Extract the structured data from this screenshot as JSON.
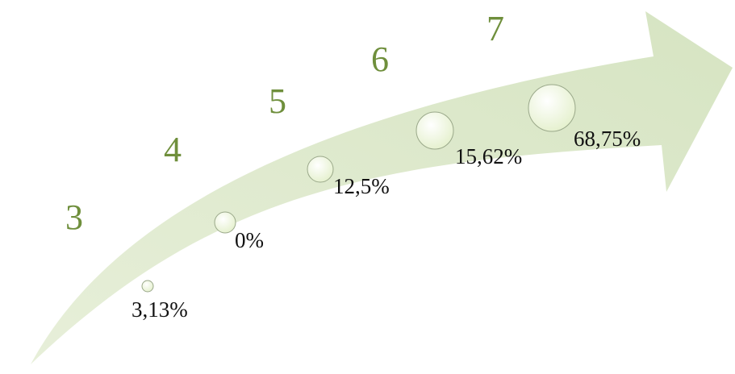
{
  "diagram": {
    "colors": {
      "arrow_fill": "#dfe9cf",
      "bubble_fill": "#eef7dc",
      "bubble_stroke": "#9aa88a",
      "step_number": "#6f8f3c"
    },
    "steps": [
      {
        "number": "3",
        "percent": "3,13%",
        "value": 3.13
      },
      {
        "number": "4",
        "percent": "0%",
        "value": 0
      },
      {
        "number": "5",
        "percent": "12,5%",
        "value": 12.5
      },
      {
        "number": "6",
        "percent": "15,62%",
        "value": 15.62
      },
      {
        "number": "7",
        "percent": "68,75%",
        "value": 68.75
      }
    ]
  }
}
